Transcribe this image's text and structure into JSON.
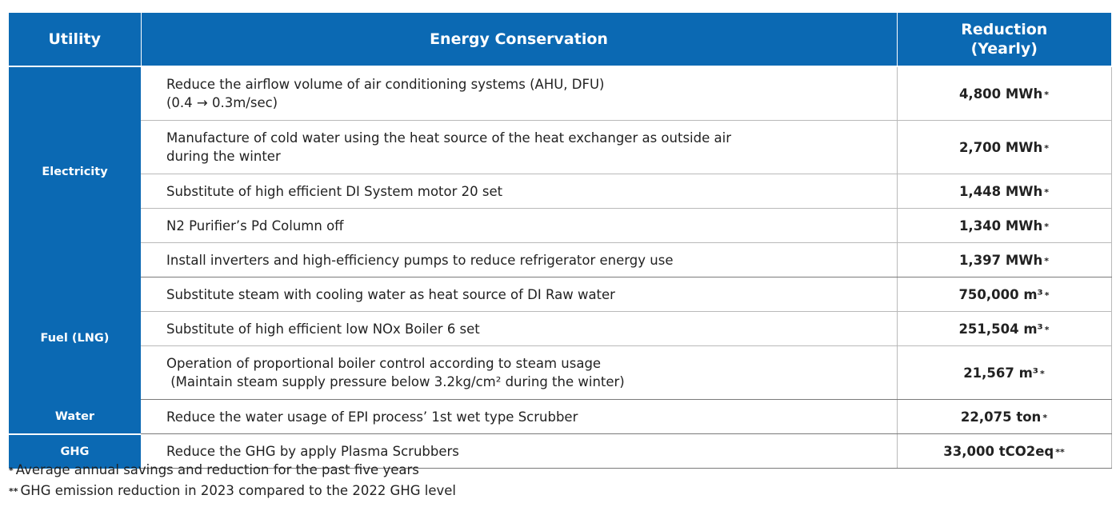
{
  "header": {
    "utility": "Utility",
    "conservation": "Energy Conservation",
    "reduction_line1": "Reduction",
    "reduction_line2": "(Yearly)"
  },
  "groups": [
    {
      "utility": "Electricity",
      "rows": [
        {
          "line1": "Reduce the airflow volume of air conditioning systems (AHU, DFU)",
          "line2": "(0.4 → 0.3m/sec)",
          "reduction": "4,800 MWh",
          "mark": "*"
        },
        {
          "line1": "Manufacture of cold water using the heat source of the heat exchanger as outside air",
          "line2": "during the winter",
          "reduction": "2,700 MWh",
          "mark": "*"
        },
        {
          "line1": "Substitute of high efficient DI System motor 20 set",
          "reduction": "1,448 MWh",
          "mark": "*"
        },
        {
          "line1": "N2 Purifier’s Pd Column off",
          "reduction": "1,340 MWh",
          "mark": "*"
        },
        {
          "line1": "Install inverters and high-efficiency pumps to reduce refrigerator energy use",
          "reduction": "1,397 MWh",
          "mark": "*"
        }
      ]
    },
    {
      "utility": "Fuel (LNG)",
      "rows": [
        {
          "line1": "Substitute steam with cooling water as heat source of DI Raw water",
          "reduction": "750,000 m³",
          "mark": "*"
        },
        {
          "line1": "Substitute of high efficient low NOx Boiler 6 set",
          "reduction": "251,504 m³",
          "mark": "*"
        },
        {
          "line1": "Operation of proportional boiler control according to steam usage",
          "line2": " (Maintain steam supply pressure below 3.2kg/cm² during the winter)",
          "reduction": "21,567 m³",
          "mark": "*"
        }
      ]
    },
    {
      "utility": "Water",
      "rows": [
        {
          "line1": "Reduce the water usage of EPI process’ 1st wet type Scrubber",
          "reduction": "22,075 ton",
          "mark": "*"
        }
      ]
    },
    {
      "utility": "GHG",
      "rows": [
        {
          "line1": "Reduce the GHG by apply Plasma Scrubbers",
          "reduction": "33,000 tCO2eq",
          "mark": "**"
        }
      ]
    }
  ],
  "footnotes": [
    {
      "mark": "*",
      "text": "Average annual savings and reduction for the past five years"
    },
    {
      "mark": "**",
      "text": "GHG emission reduction in 2023 compared to the 2022 GHG level"
    }
  ],
  "colors": {
    "header_bg": "#0b69b3",
    "header_text": "#ffffff"
  }
}
